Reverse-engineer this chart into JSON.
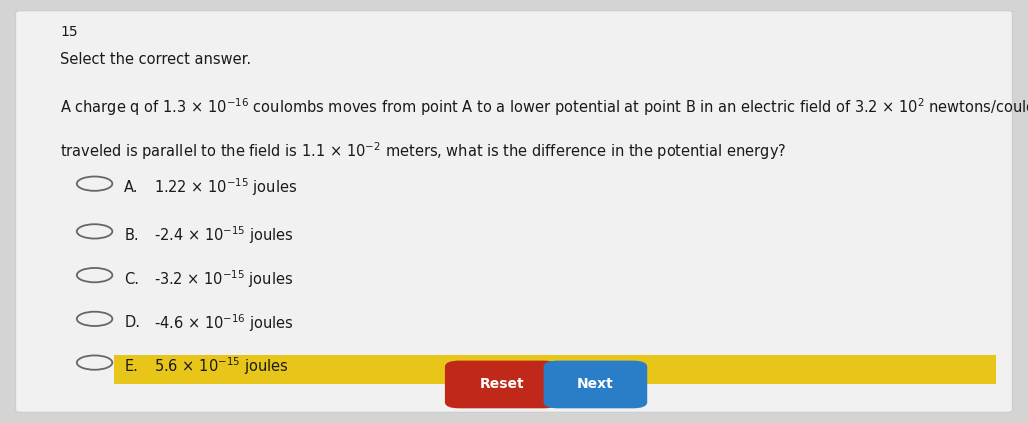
{
  "title_number": "15",
  "instruction": "Select the correct answer.",
  "bg_color": "#d4d4d4",
  "card_color": "#f2f1f1",
  "highlight_color": "#e8c619",
  "reset_color": "#c0281a",
  "next_color": "#2a7ec8",
  "button_text_color": "#ffffff",
  "text_color": "#1a1a1a",
  "circle_color": "#666666",
  "question_fontsize": 10.5,
  "option_fontsize": 10.5,
  "instruction_fontsize": 10.5,
  "options": [
    {
      "label": "A.",
      "text": "1.22 × 10$^{-15}$ joules",
      "highlighted": false
    },
    {
      "label": "B.",
      "text": "-2.4 × 10$^{-15}$ joules",
      "highlighted": false
    },
    {
      "label": "C.",
      "text": "-3.2 × 10$^{-15}$ joules",
      "highlighted": false
    },
    {
      "label": "D.",
      "text": "-4.6 × 10$^{-16}$ joules",
      "highlighted": false
    },
    {
      "label": "E.",
      "text": "5.6 × 10$^{-15}$ joules",
      "highlighted": true
    }
  ],
  "q_line1": "A charge q of 1.3 × 10$^{-16}$ coulombs moves from point A to a lower potential at point B in an electric field of 3.2 × 10$^{2}$ newtons/coulomb. If the distance",
  "q_line2": "traveled is parallel to the field is 1.1 × 10$^{-2}$ meters, what is the difference in the potential energy?"
}
